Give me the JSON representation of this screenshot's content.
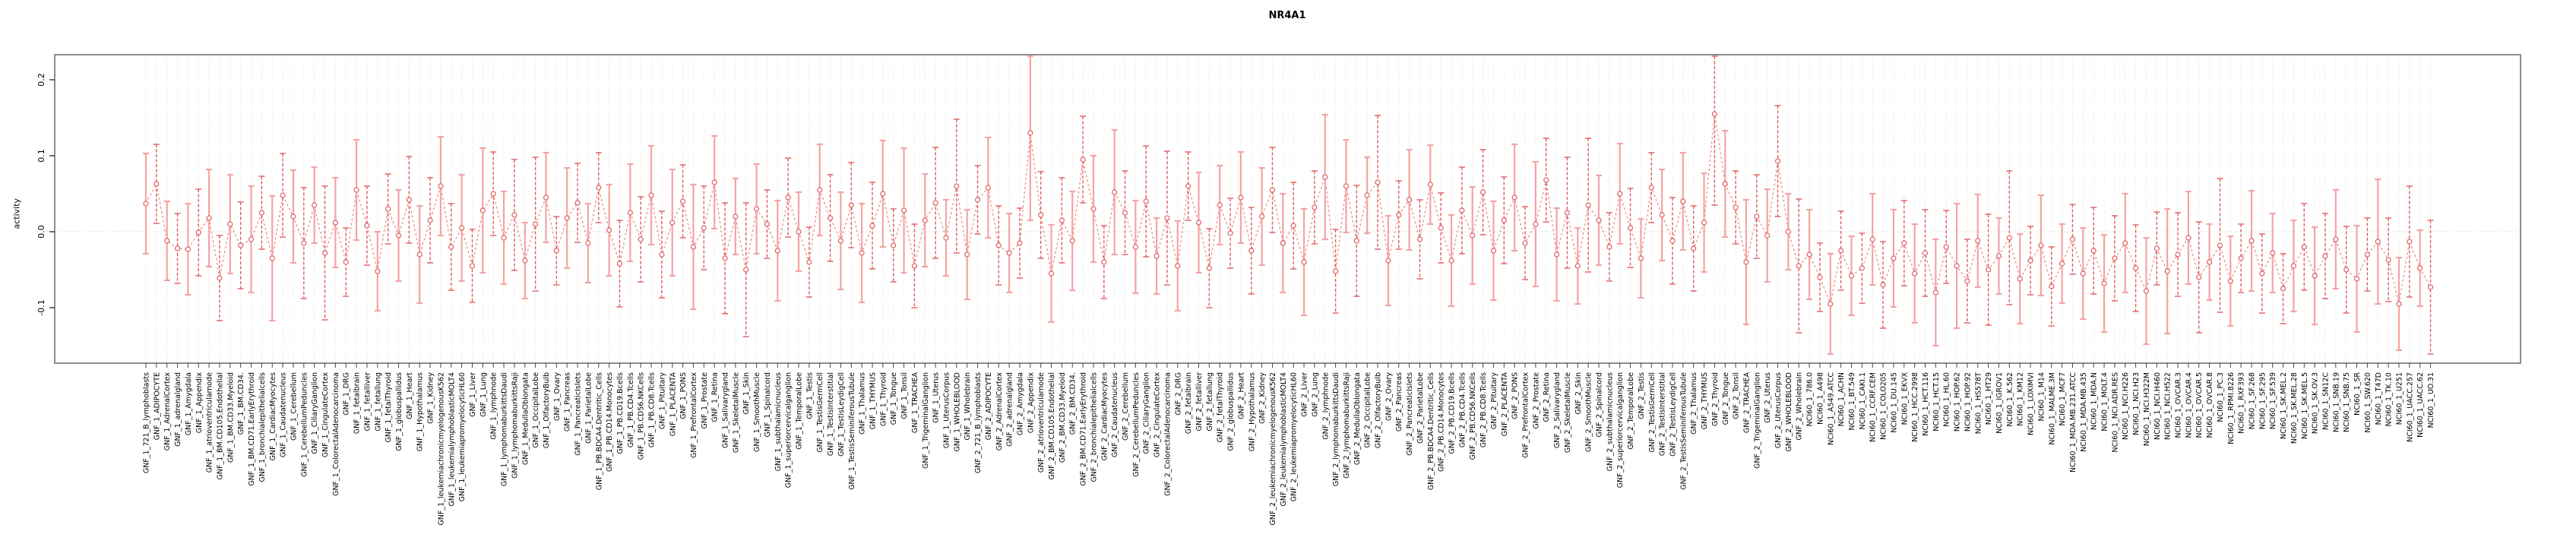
{
  "chart_data": {
    "type": "line",
    "variant": "points-with-error-bars",
    "title": "NR4A1",
    "xlabel": "",
    "ylabel": "activity",
    "ylim": [
      -0.173,
      0.233
    ],
    "yticks": [
      0.2,
      0.1,
      0.0,
      -0.1
    ],
    "ytick_labels": [
      "0.2",
      "0.1",
      "0.0",
      "-0.1"
    ],
    "legend": "none",
    "grid": "dotted vertical line per category; dotted horizontal line at 0",
    "colors": {
      "point": "#e05c5c",
      "line": "#ec8585",
      "bar_light": "#f4a3a3",
      "bar_dark": "#e05c5c",
      "grid": "#dadada",
      "box": "#8c8c8c",
      "text": "#000000",
      "background": "#ffffff"
    },
    "categories": [
      "GNF_1_721_B_lymphoblasts",
      "GNF_1_ADIPOCYTE",
      "GNF_1_AdrenalCortex",
      "GNF_1_adrenalgland",
      "GNF_1_Amygdala",
      "GNF_1_Appendix",
      "GNF_1_atrioventricularnode",
      "GNF_1_BM.CD105.Endothelial",
      "GNF_1_BM.CD33.Myeloid",
      "GNF_1_BM.CD34.",
      "GNF_1_BM.CD71.EarlyErythroid",
      "GNF_1_bronchialepithelialcells",
      "GNF_1_CardiacMyocytes",
      "GNF_1_Caudatenucleus",
      "GNF_1_Cerebellum",
      "GNF_1_CerebellumPeduncles",
      "GNF_1_CiliaryGanglion",
      "GNF_1_CingulateCortex",
      "GNF_1_ColorectalAdenocarcinoma",
      "GNF_1_DRG",
      "GNF_1_fetalbrain",
      "GNF_1_fetalliver",
      "GNF_1_fetallung",
      "GNF_1_fetalThyroid",
      "GNF_1_globuspallidus",
      "GNF_1_Heart",
      "GNF_1_Hypothalamus",
      "GNF_1_Kidney",
      "GNF_1_leukemiachronicmyelogenousK562",
      "GNF_1_leukemialymphoblasticMOLT4",
      "GNF_1_leukemiapromyelocyticHL60",
      "GNF_1_Liver",
      "GNF_1_Lung",
      "GNF_1_lymphnode",
      "GNF_1_lymphomaburkittsDaudi",
      "GNF_1_lymphomaburkittsRaji",
      "GNF_1_MedullaOblongata",
      "GNF_1_OccipitalLobe",
      "GNF_1_OlfactoryBulb",
      "GNF_1_Ovary",
      "GNF_1_Pancreas",
      "GNF_1_PancreaticIslets",
      "GNF_1_ParietalLobe",
      "GNF_1_PB.BDCA4.Dentritic_Cells",
      "GNF_1_PB.CD14.Monocytes",
      "GNF_1_PB.CD19.Bcells",
      "GNF_1_PB.CD4.Tcells",
      "GNF_1_PB.CD56.NKCells",
      "GNF_1_PB.CD8.Tcells",
      "GNF_1_Pituitary",
      "GNF_1_PLACENTA",
      "GNF_1_PONS",
      "GNF_1_PrefrontalCortex",
      "GNF_1_Prostate",
      "GNF_1_Retina",
      "GNF_1_Salivarygland",
      "GNF_1_SkeletalMuscle",
      "GNF_1_Skin",
      "GNF_1_SmoothMuscle",
      "GNF_1_Spinalcord",
      "GNF_1_subthalamicnucleus",
      "GNF_1_superiorcervicalganglion",
      "GNF_1_TemporalLobe",
      "GNF_1_Testis",
      "GNF_1_TestisGermCell",
      "GNF_1_TestisInterstitial",
      "GNF_1_TestisLeydigCell",
      "GNF_1_TestisSeminiferousTubule",
      "GNF_1_Thalamus",
      "GNF_1_THYMUS",
      "GNF_1_Thyroid",
      "GNF_1_Tongue",
      "GNF_1_Tonsil",
      "GNF_1_TRACHEA",
      "GNF_1_TrigeminalGanglion",
      "GNF_1_Uterus",
      "GNF_1_UterusCorpus",
      "GNF_1_WHOLEBLOOD",
      "GNF_1_Wholebrain",
      "GNF_2_721_B_lymphoblasts",
      "GNF_2_ADIPOCYTE",
      "GNF_2_AdrenalCortex",
      "GNF_2_adrenalgland",
      "GNF_2_Amygdala",
      "GNF_2_Appendix",
      "GNF_2_atrioventricularnode",
      "GNF_2_BM.CD105.Endothelial",
      "GNF_2_BM.CD33.Myeloid",
      "GNF_2_BM.CD34.",
      "GNF_2_BM.CD71.EarlyErythroid",
      "GNF_2_bronchialepithelialcells",
      "GNF_2_CardiacMyocytes",
      "GNF_2_Caudatenucleus",
      "GNF_2_Cerebellum",
      "GNF_2_CerebellumPeduncles",
      "GNF_2_CiliaryGanglion",
      "GNF_2_CingulateCortex",
      "GNF_2_ColorectalAdenocarcinoma",
      "GNF_2_DRG",
      "GNF_2_fetalbrain",
      "GNF_2_fetalliver",
      "GNF_2_fetallung",
      "GNF_2_fetalThyroid",
      "GNF_2_globuspallidus",
      "GNF_2_Heart",
      "GNF_2_Hypothalamus",
      "GNF_2_Kidney",
      "GNF_2_leukemiachronicmyelogenousK562",
      "GNF_2_leukemialymphoblasticMOLT4",
      "GNF_2_leukemiapromyelocyticHL60",
      "GNF_2_Liver",
      "GNF_2_Lung",
      "GNF_2_lymphnode",
      "GNF_2_lymphomaburkittsDaudi",
      "GNF_2_lymphomaburkittsRaji",
      "GNF_2_MedullaOblongata",
      "GNF_2_OccipitalLobe",
      "GNF_2_OlfactoryBulb",
      "GNF_2_Ovary",
      "GNF_2_Pancreas",
      "GNF_2_PancreaticIslets",
      "GNF_2_ParietalLobe",
      "GNF_2_PB.BDCA4.Dentritic_Cells",
      "GNF_2_PB.CD14.Monocytes",
      "GNF_2_PB.CD19.Bcells",
      "GNF_2_PB.CD4.Tcells",
      "GNF_2_PB.CD56.NKCells",
      "GNF_2_PB.CD8.Tcells",
      "GNF_2_Pituitary",
      "GNF_2_PLACENTA",
      "GNF_2_PONS",
      "GNF_2_PrefrontalCortex",
      "GNF_2_Prostate",
      "GNF_2_Retina",
      "GNF_2_Salivarygland",
      "GNF_2_SkeletalMuscle",
      "GNF_2_Skin",
      "GNF_2_SmoothMuscle",
      "GNF_2_Spinalcord",
      "GNF_2_subthalamicnucleus",
      "GNF_2_superiorcervicalganglion",
      "GNF_2_TemporalLobe",
      "GNF_2_Testis",
      "GNF_2_TestisGermCell",
      "GNF_2_TestisInterstitial",
      "GNF_2_TestisLeydigCell",
      "GNF_2_TestisSeminiferousTubule",
      "GNF_2_Thalamus",
      "GNF_2_THYMUS",
      "GNF_2_Thyroid",
      "GNF_2_Tongue",
      "GNF_2_Tonsil",
      "GNF_2_TRACHEA",
      "GNF_2_TrigeminalGanglion",
      "GNF_2_Uterus",
      "GNF_2_UterusCorpus",
      "GNF_2_WHOLEBLOOD",
      "GNF_2_Wholebrain",
      "NCI60_1_786.0",
      "NCI60_1_A498",
      "NCI60_1_A549.ATCC",
      "NCI60_1_ACHN",
      "NCI60_1_BT.549",
      "NCI60_1_CAKI.1",
      "NCI60_1_CCRF.CEM",
      "NCI60_1_COLO205",
      "NCI60_1_DU.145",
      "NCI60_1_EKVX",
      "NCI60_1_HCC.2998",
      "NCI60_1_HCT.116",
      "NCI60_1_HCT.15",
      "NCI60_1_HL.60",
      "NCI60_1_HOP.62",
      "NCI60_1_HOP.92",
      "NCI60_1_HS578T",
      "NCI60_1_HT29",
      "NCI60_1_IGROV1",
      "NCI60_1_K.562",
      "NCI60_1_KM12",
      "NCI60_1_LOXIMVI",
      "NCI60_1_M14",
      "NCI60_1_MALME.3M",
      "NCI60_1_MCF7",
      "NCI60_1_MDA.MB.231.ATCC",
      "NCI60_1_MDA.MB.435",
      "NCI60_1_MDA.N",
      "NCI60_1_MOLT.4",
      "NCI60_1_NCI.ADR.RES",
      "NCI60_1_NCI.H226",
      "NCI60_1_NCI.H23",
      "NCI60_1_NCI.H322M",
      "NCI60_1_NCI.H460",
      "NCI60_1_NCI.H522",
      "NCI60_1_OVCAR.3",
      "NCI60_1_OVCAR.4",
      "NCI60_1_OVCAR.5",
      "NCI60_1_OVCAR.8",
      "NCI60_1_PC.3",
      "NCI60_1_RPMI.8226",
      "NCI60_1_RXF393",
      "NCI60_1_SF.268",
      "NCI60_1_SF.295",
      "NCI60_1_SF.539",
      "NCI60_1_SK.MEL.2",
      "NCI60_1_SK.MEL.28",
      "NCI60_1_SK.MEL.5",
      "NCI60_1_SK.OV.3",
      "NCI60_1_SN12C",
      "NCI60_1_SNB.19",
      "NCI60_1_SNB.75",
      "NCI60_1_SR",
      "NCI60_1_SW.620",
      "NCI60_1_T47D",
      "NCI60_1_TK.10",
      "NCI60_1_U251",
      "NCI60_1_UACC.257",
      "NCI60_1_UACC.62",
      "NCI60_1_UO.31"
    ],
    "values": [
      0.037,
      0.063,
      -0.012,
      -0.022,
      -0.023,
      -0.001,
      0.018,
      -0.061,
      0.01,
      -0.018,
      -0.01,
      0.025,
      -0.035,
      0.048,
      0.02,
      -0.015,
      0.035,
      -0.028,
      0.012,
      -0.04,
      0.055,
      0.008,
      -0.052,
      0.03,
      -0.005,
      0.042,
      -0.03,
      0.015,
      0.06,
      -0.02,
      0.005,
      -0.045,
      0.028,
      0.05,
      -0.008,
      0.022,
      -0.038,
      0.01,
      0.045,
      -0.025,
      0.018,
      0.038,
      -0.015,
      0.058,
      0.002,
      -0.042,
      0.025,
      -0.01,
      0.048,
      -0.03,
      0.012,
      0.04,
      -0.02,
      0.005,
      0.065,
      -0.035,
      0.02,
      -0.05,
      0.03,
      0.01,
      -0.025,
      0.045,
      0.0,
      -0.04,
      0.055,
      0.018,
      -0.012,
      0.035,
      -0.028,
      0.008,
      0.05,
      -0.018,
      0.028,
      -0.045,
      0.015,
      0.038,
      -0.008,
      0.06,
      -0.03,
      0.042,
      0.058,
      -0.018,
      -0.028,
      -0.015,
      0.13,
      0.022,
      -0.055,
      0.015,
      -0.012,
      0.095,
      0.03,
      -0.04,
      0.052,
      0.025,
      -0.02,
      0.04,
      -0.032,
      0.018,
      -0.045,
      0.06,
      0.012,
      -0.048,
      0.035,
      -0.002,
      0.045,
      -0.025,
      0.02,
      0.055,
      -0.015,
      0.008,
      -0.04,
      0.032,
      0.072,
      -0.052,
      0.06,
      -0.012,
      0.048,
      0.065,
      -0.038,
      0.022,
      0.042,
      -0.01,
      0.062,
      0.005,
      -0.038,
      0.028,
      -0.005,
      0.052,
      -0.025,
      0.015,
      0.045,
      -0.015,
      0.01,
      0.068,
      -0.03,
      0.025,
      -0.045,
      0.035,
      0.015,
      -0.02,
      0.05,
      0.005,
      -0.035,
      0.058,
      0.022,
      -0.012,
      0.04,
      -0.022,
      0.012,
      0.155,
      0.063,
      0.032,
      -0.04,
      0.02,
      -0.005,
      0.093,
      0.0,
      -0.045,
      -0.03,
      -0.06,
      -0.095,
      -0.025,
      -0.058,
      -0.048,
      -0.01,
      -0.07,
      -0.035,
      -0.015,
      -0.055,
      -0.028,
      -0.08,
      -0.02,
      -0.045,
      -0.065,
      -0.012,
      -0.05,
      -0.032,
      -0.008,
      -0.062,
      -0.038,
      -0.018,
      -0.072,
      -0.042,
      -0.01,
      -0.055,
      -0.025,
      -0.068,
      -0.035,
      -0.015,
      -0.048,
      -0.078,
      -0.022,
      -0.052,
      -0.03,
      -0.008,
      -0.06,
      -0.04,
      -0.018,
      -0.065,
      -0.035,
      -0.012,
      -0.055,
      -0.028,
      -0.075,
      -0.045,
      -0.02,
      -0.058,
      -0.032,
      -0.01,
      -0.05,
      -0.062,
      -0.03,
      -0.013,
      -0.037,
      -0.095,
      -0.013,
      -0.048,
      -0.073
    ],
    "errors": [
      0.066,
      0.052,
      0.052,
      0.046,
      0.06,
      0.057,
      0.064,
      0.056,
      0.065,
      0.057,
      0.07,
      0.048,
      0.082,
      0.055,
      0.061,
      0.073,
      0.05,
      0.088,
      0.059,
      0.045,
      0.066,
      0.052,
      0.052,
      0.046,
      0.06,
      0.057,
      0.064,
      0.056,
      0.065,
      0.057,
      0.07,
      0.048,
      0.082,
      0.055,
      0.061,
      0.073,
      0.05,
      0.088,
      0.059,
      0.045,
      0.066,
      0.052,
      0.052,
      0.046,
      0.06,
      0.057,
      0.064,
      0.056,
      0.065,
      0.057,
      0.07,
      0.048,
      0.082,
      0.055,
      0.061,
      0.073,
      0.05,
      0.088,
      0.059,
      0.045,
      0.066,
      0.052,
      0.052,
      0.046,
      0.06,
      0.057,
      0.064,
      0.056,
      0.065,
      0.057,
      0.07,
      0.048,
      0.082,
      0.055,
      0.061,
      0.073,
      0.05,
      0.088,
      0.059,
      0.045,
      0.066,
      0.052,
      0.052,
      0.046,
      0.115,
      0.057,
      0.064,
      0.056,
      0.065,
      0.057,
      0.07,
      0.048,
      0.082,
      0.055,
      0.061,
      0.073,
      0.05,
      0.088,
      0.059,
      0.045,
      0.066,
      0.052,
      0.052,
      0.046,
      0.06,
      0.057,
      0.064,
      0.056,
      0.065,
      0.057,
      0.07,
      0.048,
      0.082,
      0.055,
      0.061,
      0.073,
      0.05,
      0.088,
      0.059,
      0.045,
      0.066,
      0.052,
      0.052,
      0.046,
      0.06,
      0.057,
      0.064,
      0.056,
      0.065,
      0.057,
      0.07,
      0.048,
      0.082,
      0.055,
      0.061,
      0.073,
      0.05,
      0.088,
      0.059,
      0.045,
      0.066,
      0.052,
      0.052,
      0.046,
      0.06,
      0.057,
      0.064,
      0.056,
      0.065,
      0.12,
      0.07,
      0.048,
      0.082,
      0.055,
      0.061,
      0.073,
      0.05,
      0.088,
      0.059,
      0.045,
      0.066,
      0.052,
      0.052,
      0.046,
      0.06,
      0.057,
      0.064,
      0.056,
      0.065,
      0.057,
      0.07,
      0.048,
      0.082,
      0.055,
      0.061,
      0.073,
      0.05,
      0.088,
      0.059,
      0.045,
      0.066,
      0.052,
      0.052,
      0.046,
      0.06,
      0.057,
      0.064,
      0.056,
      0.065,
      0.057,
      0.07,
      0.048,
      0.082,
      0.055,
      0.061,
      0.073,
      0.05,
      0.088,
      0.059,
      0.045,
      0.066,
      0.052,
      0.052,
      0.046,
      0.06,
      0.057,
      0.064,
      0.056,
      0.065,
      0.057,
      0.07,
      0.048,
      0.082,
      0.055,
      0.061,
      0.073,
      0.05,
      0.088
    ]
  }
}
